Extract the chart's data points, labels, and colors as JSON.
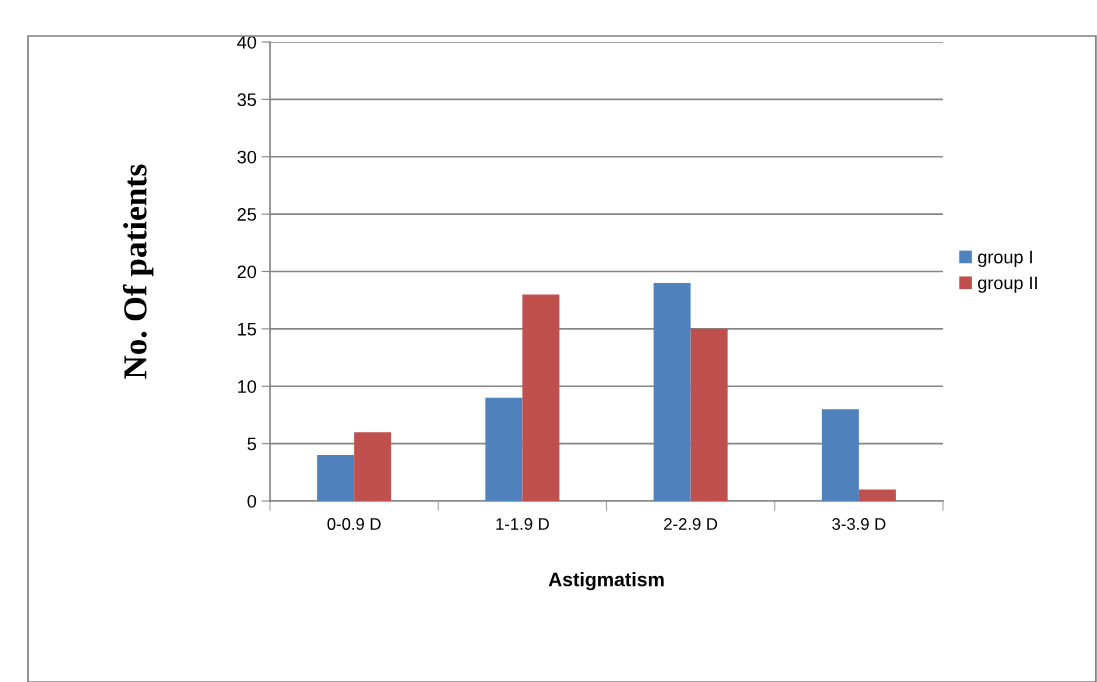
{
  "chart_data": {
    "type": "bar",
    "xlabel": "Astigmatism",
    "ylabel": "No. Of patients",
    "categories": [
      "0-0.9 D",
      "1-1.9 D",
      "2-2.9 D",
      "3-3.9 D"
    ],
    "series": [
      {
        "name": "group I",
        "color": "#4f81bd",
        "values": [
          4,
          9,
          19,
          8
        ]
      },
      {
        "name": "group II",
        "color": "#c0504d",
        "values": [
          6,
          18,
          15,
          1
        ]
      }
    ],
    "ylim": [
      0,
      40
    ],
    "yticks": [
      0,
      5,
      10,
      15,
      20,
      25,
      30,
      35,
      40
    ],
    "grid": "y",
    "legend": "right"
  }
}
